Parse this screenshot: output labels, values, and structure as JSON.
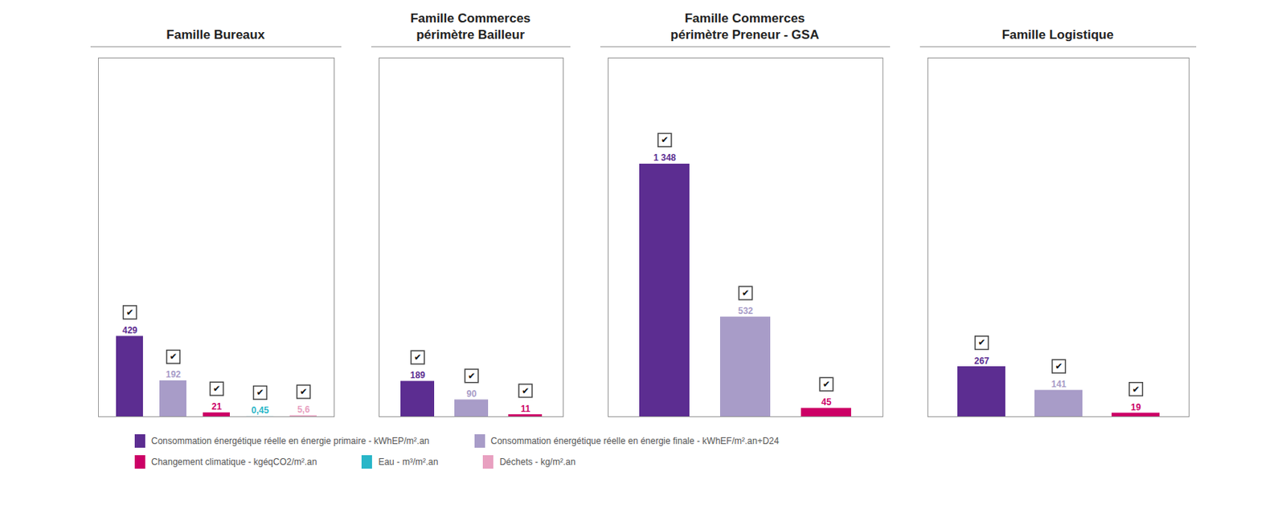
{
  "chart_data": [
    {
      "type": "bar",
      "title": "Famille Bureaux",
      "categories": [
        null
      ],
      "series": [
        {
          "name": "Consommation énergétique réelle en énergie primaire - kWhEP/m².an",
          "color": "#5C2D91",
          "values": [
            429
          ],
          "value_labels": [
            "429"
          ]
        },
        {
          "name": "Consommation énergétique réelle en énergie finale - kWhEF/m².an+D24",
          "color": "#A89CC8",
          "values": [
            192
          ],
          "value_labels": [
            "192"
          ]
        },
        {
          "name": "Changement climatique - kgéqCO2/m².an",
          "color": "#CC0066",
          "values": [
            21
          ],
          "value_labels": [
            "21"
          ]
        },
        {
          "name": "Eau - m³/m².an",
          "color": "#29B6C8",
          "values": [
            0.45
          ],
          "value_labels": [
            "0,45"
          ]
        },
        {
          "name": "Déchets - kg/m².an",
          "color": "#E8A0C0",
          "values": [
            5.6
          ],
          "value_labels": [
            "5,6"
          ]
        }
      ],
      "annotations": [
        "✔",
        "✔",
        "✔",
        "✔",
        "✔"
      ],
      "ylim": [
        0,
        1914.16
      ],
      "tick_labels": false,
      "grid": false,
      "data_labels": true
    },
    {
      "type": "bar",
      "title": "Famille Commerces\npérimètre Bailleur",
      "categories": [
        null
      ],
      "series": [
        {
          "name": "Consommation énergétique réelle en énergie primaire - kWhEP/m².an",
          "color": "#5C2D91",
          "values": [
            189
          ],
          "value_labels": [
            "189"
          ]
        },
        {
          "name": "Consommation énergétique réelle en énergie finale - kWhEF/m².an+D24",
          "color": "#A89CC8",
          "values": [
            90
          ],
          "value_labels": [
            "90"
          ]
        },
        {
          "name": "Changement climatique - kgéqCO2/m².an",
          "color": "#CC0066",
          "values": [
            11
          ],
          "value_labels": [
            "11"
          ]
        }
      ],
      "annotations": [
        "✔",
        "✔",
        "✔"
      ],
      "ylim": [
        0,
        1914.16
      ],
      "tick_labels": false,
      "grid": false,
      "data_labels": true
    },
    {
      "type": "bar",
      "title": "Famille Commerces\npérimètre Preneur - GSA",
      "categories": [
        null
      ],
      "series": [
        {
          "name": "Consommation énergétique réelle en énergie primaire - kWhEP/m².an",
          "color": "#5C2D91",
          "values": [
            1348
          ],
          "value_labels": [
            "1 348"
          ]
        },
        {
          "name": "Consommation énergétique réelle en énergie finale - kWhEF/m².an+D24",
          "color": "#A89CC8",
          "values": [
            532
          ],
          "value_labels": [
            "532"
          ]
        },
        {
          "name": "Changement climatique - kgéqCO2/m².an",
          "color": "#CC0066",
          "values": [
            45
          ],
          "value_labels": [
            "45"
          ]
        }
      ],
      "annotations": [
        "✔",
        "✔",
        "✔"
      ],
      "ylim": [
        0,
        1914.16
      ],
      "tick_labels": false,
      "grid": false,
      "data_labels": true
    },
    {
      "type": "bar",
      "title": "Famille Logistique",
      "categories": [
        null
      ],
      "series": [
        {
          "name": "Consommation énergétique réelle en énergie primaire - kWhEP/m².an",
          "color": "#5C2D91",
          "values": [
            267
          ],
          "value_labels": [
            "267"
          ]
        },
        {
          "name": "Consommation énergétique réelle en énergie finale - kWhEF/m².an+D24",
          "color": "#A89CC8",
          "values": [
            141
          ],
          "value_labels": [
            "141"
          ]
        },
        {
          "name": "Changement climatique - kgéqCO2/m².an",
          "color": "#CC0066",
          "values": [
            19
          ],
          "value_labels": [
            "19"
          ]
        }
      ],
      "annotations": [
        "✔",
        "✔",
        "✔"
      ],
      "ylim": [
        0,
        1914.16
      ],
      "tick_labels": false,
      "grid": false,
      "data_labels": true
    }
  ]
}
